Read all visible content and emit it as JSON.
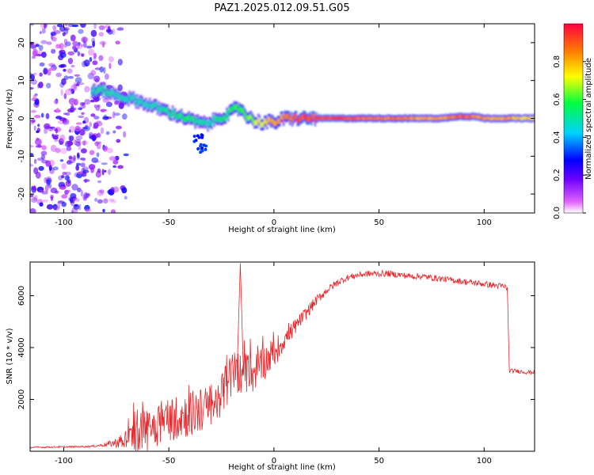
{
  "title": "PAZ1.2025.012.09.51.G05",
  "chart_data": [
    {
      "type": "heatmap",
      "xlabel": "Height of straight line (km)",
      "ylabel": "Frequency (Hz)",
      "xlim": [
        -116,
        124
      ],
      "ylim": [
        -25,
        25
      ],
      "x_ticks": [
        -100,
        -50,
        0,
        50,
        100
      ],
      "y_ticks": [
        -20,
        -10,
        0,
        10,
        20
      ],
      "grid": false,
      "colorbar": {
        "label": "Normalized spectral amplitude",
        "range": [
          0,
          1
        ],
        "ticks": [
          "0.0",
          "0.2",
          "0.4",
          "0.6",
          "0.8"
        ],
        "colormap": [
          "#ffffff",
          "#e060ff",
          "#6a00ff",
          "#0000ff",
          "#00d0ff",
          "#00ff40",
          "#ffff00",
          "#ff8000",
          "#ff0040"
        ]
      },
      "ridge": {
        "x": [
          -87,
          -82,
          -77,
          -72,
          -67,
          -62,
          -57,
          -52,
          -47,
          -42,
          -37,
          -32,
          -27,
          -22,
          -19,
          -16,
          -13,
          -10,
          -7,
          -4,
          0,
          5,
          10,
          20,
          30,
          40,
          50,
          60,
          70,
          80,
          86,
          90,
          95,
          100,
          105,
          110,
          118,
          124
        ],
        "y": [
          7,
          7.5,
          6.5,
          5.5,
          5,
          4,
          3,
          2,
          1,
          0,
          -1,
          -1.5,
          0,
          1,
          2.5,
          2.5,
          0.5,
          -0.5,
          -1,
          -1,
          -1,
          0,
          0,
          0,
          0,
          0,
          0,
          0,
          0,
          0,
          0.5,
          0.5,
          0.5,
          0,
          0,
          0,
          0,
          0
        ],
        "amplitude": [
          0.5,
          0.55,
          0.5,
          0.5,
          0.5,
          0.5,
          0.5,
          0.55,
          0.55,
          0.6,
          0.55,
          0.5,
          0.55,
          0.6,
          0.6,
          0.65,
          0.65,
          0.7,
          0.75,
          0.8,
          0.85,
          0.9,
          0.95,
          0.97,
          0.98,
          0.9,
          0.9,
          0.9,
          0.85,
          0.85,
          0.9,
          0.95,
          0.9,
          0.85,
          0.85,
          0.85,
          0.8,
          0.8
        ]
      },
      "noise": {
        "x_range": [
          -116,
          -70
        ],
        "amplitude": 0.3
      }
    },
    {
      "type": "line",
      "xlabel": "Height of straight line (km)",
      "ylabel": "SNR (10 * v/v)",
      "xlim": [
        -116,
        124
      ],
      "ylim": [
        0,
        7300
      ],
      "x_ticks": [
        -100,
        -50,
        0,
        50,
        100
      ],
      "y_ticks": [
        2000,
        4000,
        6000
      ],
      "grid": false,
      "color": "#e8262a",
      "x": [
        -116,
        -90,
        -85,
        -80,
        -75,
        -70,
        -65,
        -60,
        -55,
        -50,
        -45,
        -40,
        -35,
        -30,
        -28,
        -25,
        -22,
        -20,
        -18,
        -15,
        -12,
        -10,
        -8,
        -5,
        0,
        5,
        10,
        15,
        20,
        25,
        30,
        35,
        40,
        45,
        50,
        55,
        60,
        65,
        70,
        75,
        80,
        85,
        90,
        95,
        100,
        105,
        110,
        111,
        112,
        115,
        120,
        124
      ],
      "y": [
        150,
        180,
        200,
        260,
        330,
        450,
        650,
        900,
        1100,
        1250,
        1350,
        1450,
        1550,
        1700,
        1800,
        2200,
        2600,
        2900,
        3100,
        3000,
        2900,
        3000,
        3200,
        3400,
        3800,
        4300,
        4800,
        5300,
        5800,
        6200,
        6500,
        6700,
        6800,
        6850,
        6850,
        6850,
        6800,
        6750,
        6750,
        6700,
        6650,
        6600,
        6550,
        6500,
        6450,
        6400,
        6350,
        6300,
        3100,
        3100,
        3050,
        3050
      ],
      "noise_amp": [
        30,
        30,
        40,
        80,
        200,
        400,
        700,
        900,
        900,
        900,
        900,
        900,
        900,
        900,
        800,
        800,
        900,
        1000,
        1000,
        700,
        700,
        800,
        700,
        700,
        600,
        400,
        300,
        250,
        200,
        150,
        150,
        120,
        120,
        120,
        120,
        120,
        120,
        120,
        120,
        120,
        120,
        120,
        120,
        120,
        120,
        120,
        120,
        120,
        80,
        80,
        80,
        80
      ]
    }
  ]
}
